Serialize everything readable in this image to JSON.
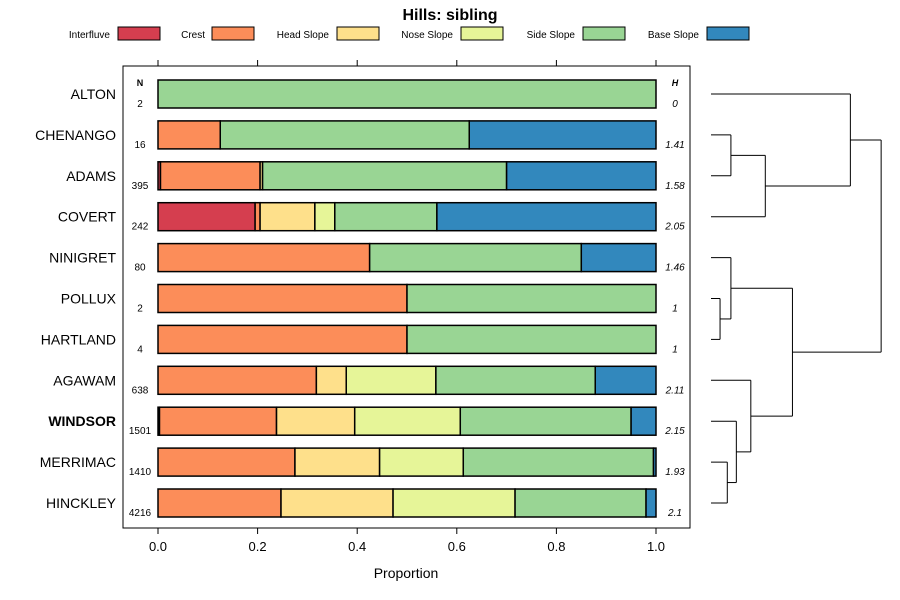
{
  "chart_data": {
    "type": "bar",
    "subtype": "stacked-horizontal-proportion",
    "title": "Hills: sibling",
    "xlabel": "Proportion",
    "xlim": [
      0,
      1
    ],
    "x_ticks": [
      "0.0",
      "0.2",
      "0.4",
      "0.6",
      "0.8",
      "1.0"
    ],
    "n_header": "N",
    "h_header": "H",
    "legend_position": "top",
    "legend": [
      {
        "name": "Interfluve",
        "color": "#d53e4f"
      },
      {
        "name": "Crest",
        "color": "#fc8d59"
      },
      {
        "name": "Head Slope",
        "color": "#fee08b"
      },
      {
        "name": "Nose Slope",
        "color": "#e6f598"
      },
      {
        "name": "Side Slope",
        "color": "#99d594"
      },
      {
        "name": "Base Slope",
        "color": "#3288bd"
      }
    ],
    "rows": [
      {
        "label": "ALTON",
        "n": "2",
        "h": "0",
        "bold": false,
        "values": [
          0,
          0,
          0,
          0,
          1.0,
          0
        ]
      },
      {
        "label": "CHENANGO",
        "n": "16",
        "h": "1.41",
        "bold": false,
        "values": [
          0,
          0.125,
          0,
          0,
          0.5,
          0.375
        ]
      },
      {
        "label": "ADAMS",
        "n": "395",
        "h": "1.58",
        "bold": false,
        "values": [
          0.005,
          0.2,
          0.005,
          0,
          0.49,
          0.3
        ]
      },
      {
        "label": "COVERT",
        "n": "242",
        "h": "2.05",
        "bold": false,
        "values": [
          0.195,
          0.01,
          0.11,
          0.04,
          0.205,
          0.44
        ]
      },
      {
        "label": "NINIGRET",
        "n": "80",
        "h": "1.46",
        "bold": false,
        "values": [
          0,
          0.425,
          0,
          0,
          0.425,
          0.15
        ]
      },
      {
        "label": "POLLUX",
        "n": "2",
        "h": "1",
        "bold": false,
        "values": [
          0,
          0.5,
          0,
          0,
          0.5,
          0
        ]
      },
      {
        "label": "HARTLAND",
        "n": "4",
        "h": "1",
        "bold": false,
        "values": [
          0,
          0.5,
          0,
          0,
          0.5,
          0
        ]
      },
      {
        "label": "AGAWAM",
        "n": "638",
        "h": "2.11",
        "bold": false,
        "values": [
          0,
          0.318,
          0.06,
          0.18,
          0.32,
          0.122
        ]
      },
      {
        "label": "WINDSOR",
        "n": "1501",
        "h": "2.15",
        "bold": true,
        "values": [
          0.003,
          0.235,
          0.157,
          0.212,
          0.343,
          0.05
        ]
      },
      {
        "label": "MERRIMAC",
        "n": "1410",
        "h": "1.93",
        "bold": false,
        "values": [
          0,
          0.275,
          0.17,
          0.168,
          0.382,
          0.005
        ]
      },
      {
        "label": "HINCKLEY",
        "n": "4216",
        "h": "2.1",
        "bold": false,
        "values": [
          0,
          0.247,
          0.225,
          0.245,
          0.263,
          0.02
        ]
      }
    ],
    "dendrogram": {
      "leaf_order": [
        "ALTON",
        "CHENANGO",
        "ADAMS",
        "COVERT",
        "NINIGRET",
        "POLLUX",
        "HARTLAND",
        "AGAWAM",
        "WINDSOR",
        "MERRIMAC",
        "HINCKLEY"
      ],
      "merges": [
        {
          "a": "CHENANGO",
          "b": "ADAMS",
          "height": 0.11
        },
        {
          "a": "POLLUX",
          "b": "HARTLAND",
          "height": 0.05
        },
        {
          "a": "MERRIMAC",
          "b": "HINCKLEY",
          "height": 0.09
        },
        {
          "a": "WINDSOR",
          "b": "MERRIMAC+HINCKLEY",
          "height": 0.14
        },
        {
          "a": "NINIGRET",
          "b": "POLLUX+HARTLAND",
          "height": 0.11
        },
        {
          "a": "AGAWAM",
          "b": "WINDSOR+MERRIMAC+HINCKLEY",
          "height": 0.22
        },
        {
          "a": "CHENANGO+ADAMS",
          "b": "COVERT",
          "height": 0.3
        },
        {
          "a": "NINIGRET+POLLUX+HARTLAND",
          "b": "AGAWAM+WINDSOR+MERRIMAC+HINCKLEY",
          "height": 0.45
        },
        {
          "a": "ALTON",
          "b": "CHENANGO+ADAMS+COVERT",
          "height": 0.77
        },
        {
          "a": "ALTON+CHENANGO+ADAMS+COVERT",
          "b": "NINIGRET+POLLUX+HARTLAND+AGAWAM+WINDSOR+MERRIMAC+HINCKLEY",
          "height": 0.94
        }
      ]
    }
  }
}
